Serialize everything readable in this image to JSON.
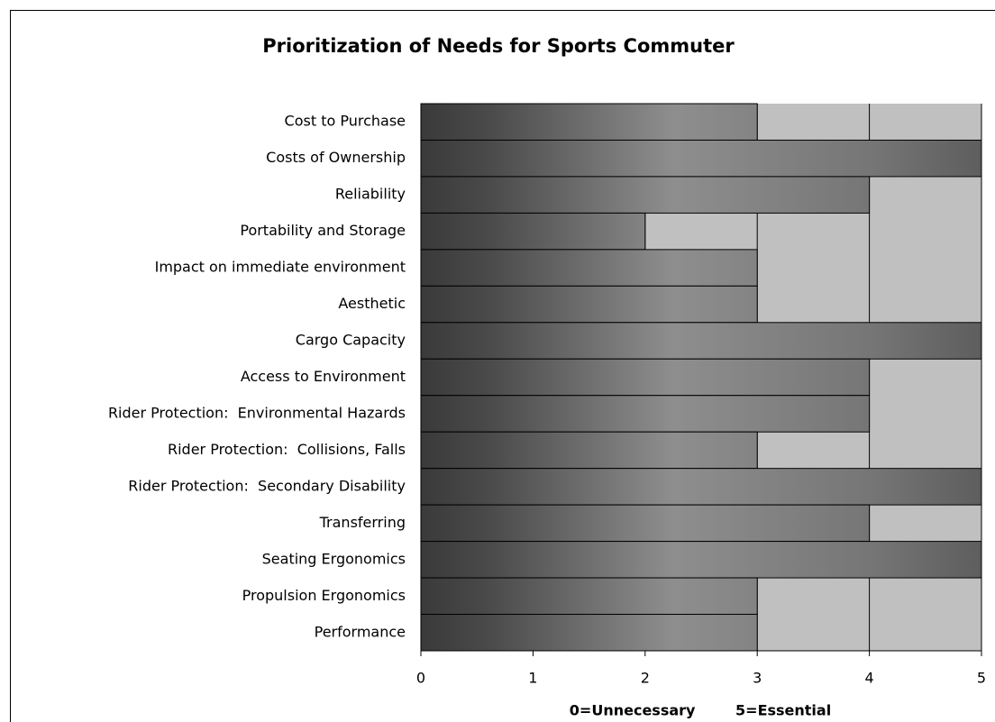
{
  "chart_data": {
    "type": "bar",
    "orientation": "horizontal",
    "title": "Prioritization of Needs for Sports Commuter",
    "x_label": "0=Unnecessary        5=Essential",
    "categories": [
      "Cost to Purchase",
      "Costs of Ownership",
      "Reliability",
      "Portability and Storage",
      "Impact on immediate environment",
      "Aesthetic",
      "Cargo Capacity",
      "Access to Environment",
      "Rider Protection:  Environmental Hazards",
      "Rider Protection:  Collisions, Falls",
      "Rider Protection:  Secondary Disability",
      "Transferring",
      "Seating Ergonomics",
      "Propulsion Ergonomics",
      "Performance"
    ],
    "values": [
      3,
      5,
      4,
      2,
      3,
      3,
      5,
      4,
      4,
      3,
      5,
      4,
      5,
      3,
      3
    ],
    "color": "#5a5a5a",
    "plot_background": "#c0c0c0",
    "xlim": [
      0,
      5
    ],
    "xticks": [
      0,
      1,
      2,
      3,
      4,
      5
    ],
    "grid": true
  }
}
